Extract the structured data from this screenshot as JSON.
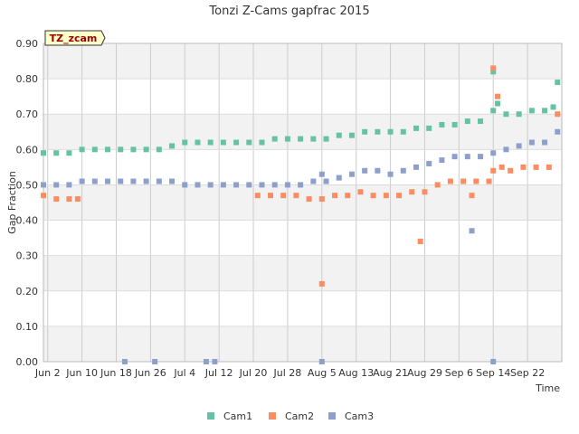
{
  "chart_data": {
    "type": "scatter",
    "title": "Tonzi Z-Cams gapfrac 2015",
    "badge": "TZ_zcam",
    "xlabel": "Time",
    "ylabel": "Gap Fraction",
    "x_start": "2015-06-01",
    "x_end": "2015-09-30",
    "ylim": [
      0,
      0.9
    ],
    "y_ticks": [
      "0.00",
      "0.10",
      "0.20",
      "0.30",
      "0.40",
      "0.50",
      "0.60",
      "0.70",
      "0.80",
      "0.90"
    ],
    "x_ticks": [
      {
        "date": "2015-06-02",
        "label": "Jun 2"
      },
      {
        "date": "2015-06-10",
        "label": "Jun 10"
      },
      {
        "date": "2015-06-18",
        "label": "Jun 18"
      },
      {
        "date": "2015-06-26",
        "label": "Jun 26"
      },
      {
        "date": "2015-07-04",
        "label": "Jul 4"
      },
      {
        "date": "2015-07-12",
        "label": "Jul 12"
      },
      {
        "date": "2015-07-20",
        "label": "Jul 20"
      },
      {
        "date": "2015-07-28",
        "label": "Jul 28"
      },
      {
        "date": "2015-08-05",
        "label": "Aug 5"
      },
      {
        "date": "2015-08-13",
        "label": "Aug 13"
      },
      {
        "date": "2015-08-21",
        "label": "Aug 21"
      },
      {
        "date": "2015-08-29",
        "label": "Aug 29"
      },
      {
        "date": "2015-09-06",
        "label": "Sep 6"
      },
      {
        "date": "2015-09-14",
        "label": "Sep 14"
      },
      {
        "date": "2015-09-22",
        "label": "Sep 22"
      }
    ],
    "grid": true,
    "alternating_bands": true,
    "legend_position": "bottom",
    "series": [
      {
        "name": "Cam1",
        "color": "#66c2a5",
        "points": [
          [
            "2015-06-01",
            0.59
          ],
          [
            "2015-06-04",
            0.59
          ],
          [
            "2015-06-07",
            0.59
          ],
          [
            "2015-06-10",
            0.6
          ],
          [
            "2015-06-13",
            0.6
          ],
          [
            "2015-06-16",
            0.6
          ],
          [
            "2015-06-19",
            0.6
          ],
          [
            "2015-06-22",
            0.6
          ],
          [
            "2015-06-25",
            0.6
          ],
          [
            "2015-06-28",
            0.6
          ],
          [
            "2015-07-01",
            0.61
          ],
          [
            "2015-07-04",
            0.62
          ],
          [
            "2015-07-07",
            0.62
          ],
          [
            "2015-07-10",
            0.62
          ],
          [
            "2015-07-13",
            0.62
          ],
          [
            "2015-07-16",
            0.62
          ],
          [
            "2015-07-19",
            0.62
          ],
          [
            "2015-07-22",
            0.62
          ],
          [
            "2015-07-25",
            0.63
          ],
          [
            "2015-07-28",
            0.63
          ],
          [
            "2015-07-31",
            0.63
          ],
          [
            "2015-08-03",
            0.63
          ],
          [
            "2015-08-06",
            0.63
          ],
          [
            "2015-08-09",
            0.64
          ],
          [
            "2015-08-12",
            0.64
          ],
          [
            "2015-08-15",
            0.65
          ],
          [
            "2015-08-18",
            0.65
          ],
          [
            "2015-08-21",
            0.65
          ],
          [
            "2015-08-24",
            0.65
          ],
          [
            "2015-08-27",
            0.66
          ],
          [
            "2015-08-30",
            0.66
          ],
          [
            "2015-09-02",
            0.67
          ],
          [
            "2015-09-05",
            0.67
          ],
          [
            "2015-09-08",
            0.68
          ],
          [
            "2015-09-11",
            0.68
          ],
          [
            "2015-09-14",
            0.71
          ],
          [
            "2015-09-14",
            0.82
          ],
          [
            "2015-09-15",
            0.73
          ],
          [
            "2015-09-17",
            0.7
          ],
          [
            "2015-09-20",
            0.7
          ],
          [
            "2015-09-23",
            0.71
          ],
          [
            "2015-09-26",
            0.71
          ],
          [
            "2015-09-28",
            0.72
          ],
          [
            "2015-09-29",
            0.79
          ]
        ]
      },
      {
        "name": "Cam2",
        "color": "#fc8d62",
        "points": [
          [
            "2015-06-01",
            0.47
          ],
          [
            "2015-06-04",
            0.46
          ],
          [
            "2015-06-07",
            0.46
          ],
          [
            "2015-06-09",
            0.46
          ],
          [
            "2015-07-21",
            0.47
          ],
          [
            "2015-07-24",
            0.47
          ],
          [
            "2015-07-27",
            0.47
          ],
          [
            "2015-07-30",
            0.47
          ],
          [
            "2015-08-02",
            0.46
          ],
          [
            "2015-08-05",
            0.46
          ],
          [
            "2015-08-05",
            0.22
          ],
          [
            "2015-08-08",
            0.47
          ],
          [
            "2015-08-11",
            0.47
          ],
          [
            "2015-08-14",
            0.48
          ],
          [
            "2015-08-17",
            0.47
          ],
          [
            "2015-08-20",
            0.47
          ],
          [
            "2015-08-23",
            0.47
          ],
          [
            "2015-08-26",
            0.48
          ],
          [
            "2015-08-28",
            0.34
          ],
          [
            "2015-08-29",
            0.48
          ],
          [
            "2015-09-01",
            0.5
          ],
          [
            "2015-09-04",
            0.51
          ],
          [
            "2015-09-07",
            0.51
          ],
          [
            "2015-09-09",
            0.47
          ],
          [
            "2015-09-10",
            0.51
          ],
          [
            "2015-09-13",
            0.51
          ],
          [
            "2015-09-14",
            0.83
          ],
          [
            "2015-09-14",
            0.54
          ],
          [
            "2015-09-15",
            0.75
          ],
          [
            "2015-09-16",
            0.55
          ],
          [
            "2015-09-18",
            0.54
          ],
          [
            "2015-09-21",
            0.55
          ],
          [
            "2015-09-24",
            0.55
          ],
          [
            "2015-09-27",
            0.55
          ],
          [
            "2015-09-29",
            0.7
          ]
        ]
      },
      {
        "name": "Cam3",
        "color": "#8da0cb",
        "points": [
          [
            "2015-06-01",
            0.5
          ],
          [
            "2015-06-04",
            0.5
          ],
          [
            "2015-06-07",
            0.5
          ],
          [
            "2015-06-10",
            0.51
          ],
          [
            "2015-06-13",
            0.51
          ],
          [
            "2015-06-16",
            0.51
          ],
          [
            "2015-06-19",
            0.51
          ],
          [
            "2015-06-20",
            0.0
          ],
          [
            "2015-06-22",
            0.51
          ],
          [
            "2015-06-25",
            0.51
          ],
          [
            "2015-06-27",
            0.0
          ],
          [
            "2015-06-28",
            0.51
          ],
          [
            "2015-07-01",
            0.51
          ],
          [
            "2015-07-04",
            0.5
          ],
          [
            "2015-07-07",
            0.5
          ],
          [
            "2015-07-09",
            0.0
          ],
          [
            "2015-07-10",
            0.5
          ],
          [
            "2015-07-11",
            0.0
          ],
          [
            "2015-07-13",
            0.5
          ],
          [
            "2015-07-16",
            0.5
          ],
          [
            "2015-07-19",
            0.5
          ],
          [
            "2015-07-22",
            0.5
          ],
          [
            "2015-07-25",
            0.5
          ],
          [
            "2015-07-28",
            0.5
          ],
          [
            "2015-07-31",
            0.5
          ],
          [
            "2015-08-03",
            0.51
          ],
          [
            "2015-08-05",
            0.53
          ],
          [
            "2015-08-05",
            0.0
          ],
          [
            "2015-08-06",
            0.51
          ],
          [
            "2015-08-09",
            0.52
          ],
          [
            "2015-08-12",
            0.53
          ],
          [
            "2015-08-15",
            0.54
          ],
          [
            "2015-08-18",
            0.54
          ],
          [
            "2015-08-21",
            0.53
          ],
          [
            "2015-08-24",
            0.54
          ],
          [
            "2015-08-27",
            0.55
          ],
          [
            "2015-08-30",
            0.56
          ],
          [
            "2015-09-02",
            0.57
          ],
          [
            "2015-09-05",
            0.58
          ],
          [
            "2015-09-08",
            0.58
          ],
          [
            "2015-09-09",
            0.37
          ],
          [
            "2015-09-11",
            0.58
          ],
          [
            "2015-09-14",
            0.59
          ],
          [
            "2015-09-14",
            0.0
          ],
          [
            "2015-09-17",
            0.6
          ],
          [
            "2015-09-20",
            0.61
          ],
          [
            "2015-09-23",
            0.62
          ],
          [
            "2015-09-26",
            0.62
          ],
          [
            "2015-09-29",
            0.65
          ]
        ]
      }
    ]
  }
}
